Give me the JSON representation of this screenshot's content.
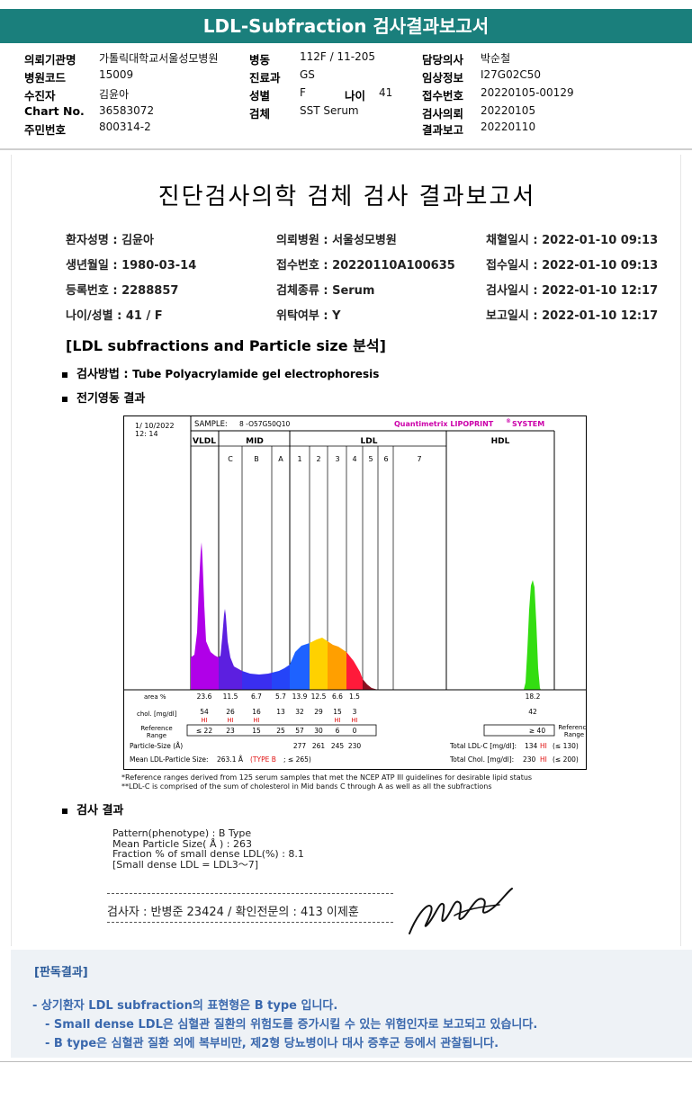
{
  "title": "LDL-Subfraction 검사결과보고서",
  "header": {
    "col1": [
      {
        "label": "의뢰기관명",
        "value": "가톨릭대학교서울성모병원"
      },
      {
        "label": "병원코드",
        "value": "15009"
      },
      {
        "label": "수진자",
        "value": "김윤아"
      },
      {
        "label": "Chart No.",
        "value": "36583072"
      },
      {
        "label": "주민번호",
        "value": "800314-2"
      }
    ],
    "col2": [
      {
        "label": "병동",
        "value": "112F / 11-205"
      },
      {
        "label": "진료과",
        "value": "GS"
      },
      {
        "label": "성별",
        "value": "F"
      },
      {
        "label": "검체",
        "value": "SST Serum"
      }
    ],
    "age": {
      "label": "나이",
      "value": "41"
    },
    "col3": [
      {
        "label": "담당의사",
        "value": "박순철"
      },
      {
        "label": "임상정보",
        "value": "I27G02C50"
      },
      {
        "label": "접수번호",
        "value": "20220105-00129"
      },
      {
        "label": "검사의뢰",
        "value": "20220105"
      },
      {
        "label": "결과보고",
        "value": "20220110"
      }
    ]
  },
  "report": {
    "title": "진단검사의학 검체 검사 결과보고서",
    "patient": [
      [
        "환자성명 : 김윤아",
        "의뢰병원 : 서울성모병원",
        "채혈일시 : 2022-01-10 09:13"
      ],
      [
        "생년월일 : 1980-03-14",
        "접수번호 : 20220110A100635",
        "접수일시 : 2022-01-10 09:13"
      ],
      [
        "등록번호 : 2288857",
        "검체종류 : Serum",
        "검사일시 : 2022-01-10 12:17"
      ],
      [
        "나이/성별 : 41 / F",
        "위탁여부 : Y",
        "보고일시 : 2022-01-10 12:17"
      ]
    ],
    "section_title": "[LDL subfractions and Particle size 분석]",
    "method_label": "검사방법 :",
    "method_value": "Tube Polyacrylamide gel electrophoresis",
    "electro_label": "전기영동 결과",
    "result_label": "검사 결과",
    "result_lines": [
      "Pattern(phenotype) : B Type",
      "Mean Particle Size( Å ) : 263",
      "Fraction % of small dense LDL(%) : 8.1",
      "[Small dense LDL = LDL3～7]"
    ],
    "signature": "검사자 : 반병준  23424  /  확인전문의 : 413  이제훈",
    "notes": [
      "*Reference ranges derived from 125 serum samples that met the NCEP ATP III guidelines for desirable lipid status",
      "**LDL-C is comprised of the sum of cholesterol in Mid bands C through A as well as all the subfractions"
    ]
  },
  "chart_data": {
    "type": "area",
    "date": "1/ 10/2022",
    "time": "12: 14",
    "sample_label": "SAMPLE:",
    "sample": "8 -O57G50Q10",
    "brand": "Quantimetrix LIPOPRINT",
    "brand_mark": "®",
    "brand_suffix": "SYSTEM",
    "groups": [
      "VLDL",
      "MID",
      "LDL",
      "HDL"
    ],
    "bands": [
      "C",
      "B",
      "A",
      "1",
      "2",
      "3",
      "4",
      "5",
      "6",
      "7"
    ],
    "rows": {
      "area_label": "area %",
      "area": [
        "23.6",
        "11.5",
        "6.7",
        "5.7",
        "13.9",
        "12.5",
        "6.6",
        "1.5",
        "",
        "",
        "18.2"
      ],
      "chol_label": "chol. [mg/dl]",
      "chol": [
        "54",
        "26",
        "16",
        "13",
        "32",
        "29",
        "15",
        "3",
        "",
        "",
        "42"
      ],
      "hi": [
        "HI",
        "HI",
        "HI",
        "",
        "",
        "",
        "HI",
        "HI",
        "",
        "",
        ""
      ],
      "ref_label_1": "Reference",
      "ref_label_2": "Range",
      "ref": [
        "≤ 22",
        "23",
        "15",
        "25",
        "57",
        "30",
        "6",
        "0",
        "",
        "",
        "≥ 40"
      ],
      "ref_right_1": "Reference",
      "ref_right_2": "Range",
      "ps_label": "Particle-Size (Å)",
      "ps": [
        "277",
        "261",
        "245",
        "230"
      ],
      "total_ldl_label": "Total LDL-C [mg/dl]:",
      "total_ldl": "134",
      "total_ldl_flag": "HI",
      "total_ldl_ref": "(≤ 130)",
      "mean_label": "Mean LDL-Particle Size:",
      "mean_value": "263.1 Å",
      "mean_type": "(TYPE B",
      "mean_ref": "; ≤ 265)",
      "total_chol_label": "Total Chol. [mg/dl]:",
      "total_chol": "230",
      "total_chol_flag": "HI",
      "total_chol_ref": "(≤ 200)"
    },
    "colors": {
      "vldl": "#b000e8",
      "mid": "#5c1fe0",
      "ldl1": "#1e62ff",
      "ldl2": "#ffd100",
      "ldl3": "#ff9f00",
      "ldl4": "#ff1a3a",
      "hdl": "#33dd11",
      "brand": "#cc00aa",
      "hi": "#e01010"
    }
  },
  "judgement": {
    "title": "[판독결과]",
    "lines": [
      "- 상기환자 LDL subfraction의 표현형은 B type 입니다.",
      "-  Small dense LDL은 심혈관 질환의 위험도를 증가시킬 수 있는 위험인자로 보고되고 있습니다.",
      "-  B type은 심혈관 질환 외에 복부비만, 제2형 당뇨병이나 대사 증후군 등에서 관찰됩니다."
    ]
  }
}
